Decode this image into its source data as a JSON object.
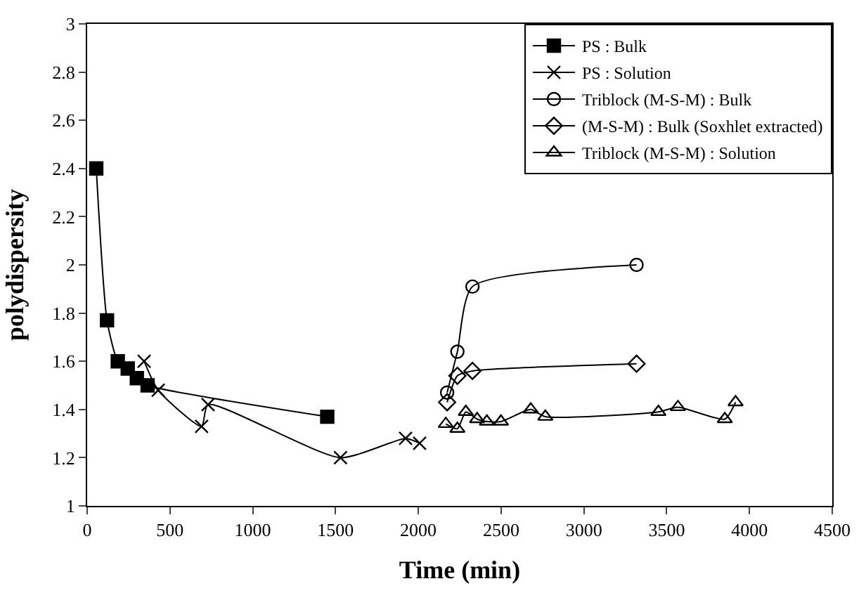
{
  "chart_data": {
    "type": "line",
    "xlabel": "Time (min)",
    "ylabel": "polydispersity",
    "xlim": [
      0,
      4500
    ],
    "xticks": [
      0,
      500,
      1000,
      1500,
      2000,
      2500,
      3000,
      3500,
      4000,
      4500
    ],
    "ylim": [
      1,
      3
    ],
    "yticks": [
      1,
      1.2,
      1.4,
      1.6,
      1.8,
      2,
      2.2,
      2.4,
      2.6,
      2.8,
      3
    ],
    "legend": "top right",
    "series": [
      {
        "name": "PS : Bulk",
        "color": "#000000",
        "marker": "square",
        "x": [
          55,
          120,
          185,
          245,
          300,
          365,
          1450
        ],
        "values": [
          2.4,
          1.77,
          1.6,
          1.57,
          1.53,
          1.5,
          1.37
        ]
      },
      {
        "name": "PS : Solution",
        "color": "#000000",
        "marker": "cross",
        "x": [
          344,
          429,
          691,
          730,
          1530,
          1923,
          2008
        ],
        "values": [
          1.6,
          1.48,
          1.33,
          1.42,
          1.2,
          1.28,
          1.26
        ]
      },
      {
        "name": "Triblock (M-S-M) : Bulk",
        "color": "#000000",
        "marker": "circle",
        "x": [
          2174,
          2236,
          2327,
          3318
        ],
        "values": [
          1.47,
          1.64,
          1.91,
          2.0
        ]
      },
      {
        "name": "(M-S-M) : Bulk (Soxhlet extracted)",
        "color": "#000000",
        "marker": "diamond",
        "x": [
          2174,
          2236,
          2327,
          3318
        ],
        "values": [
          1.43,
          1.54,
          1.56,
          1.59
        ]
      },
      {
        "name": "Triblock (M-S-M) : Solution",
        "color": "#000000",
        "marker": "triangle",
        "x": [
          2166,
          2236,
          2287,
          2355,
          2414,
          2499,
          2679,
          2767,
          3450,
          3568,
          3851,
          3916
        ],
        "values": [
          1.34,
          1.32,
          1.39,
          1.36,
          1.35,
          1.35,
          1.4,
          1.37,
          1.39,
          1.41,
          1.36,
          1.43
        ]
      }
    ]
  }
}
